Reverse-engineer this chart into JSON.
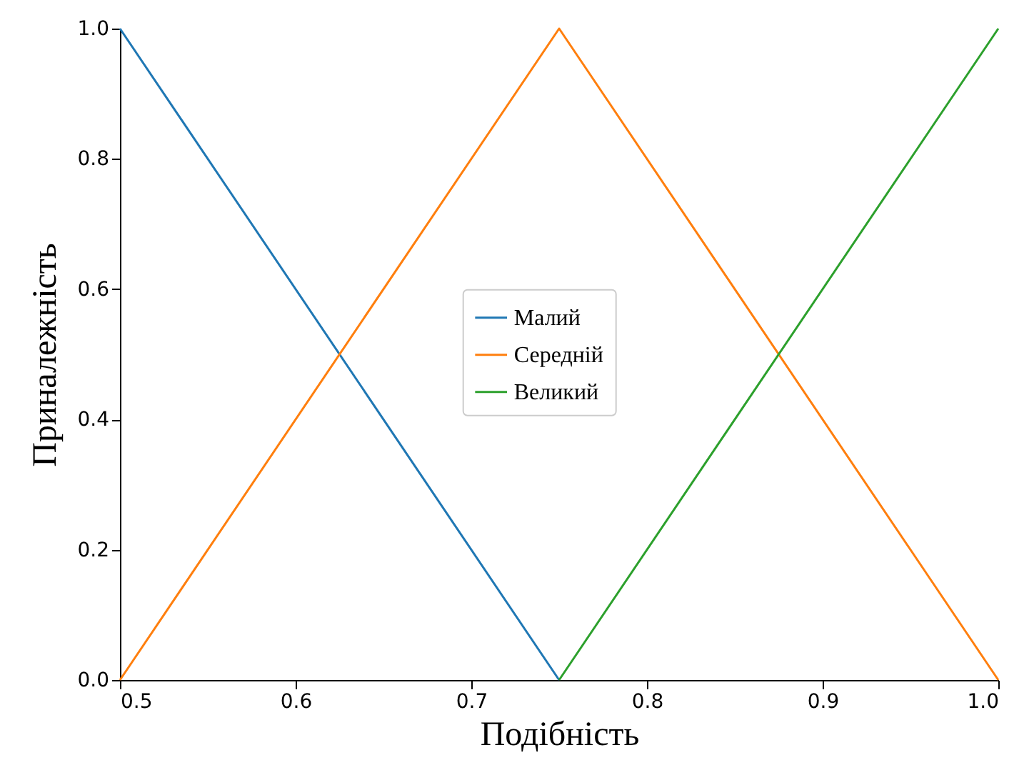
{
  "chart_data": {
    "type": "line",
    "xlabel": "Подібність",
    "ylabel": "Приналежність",
    "xlim": [
      0.5,
      1.0
    ],
    "ylim": [
      0,
      1.0
    ],
    "xticks": [
      0.5,
      0.6,
      0.7,
      0.8,
      0.9,
      {
        "value": 1,
        "label": "1.0"
      }
    ],
    "yticks": [
      {
        "value": 0,
        "label": "0.0"
      },
      0.2,
      0.4,
      0.6,
      0.8,
      {
        "value": 1,
        "label": "1.0"
      }
    ],
    "grid": false,
    "legend": "center",
    "marker": "none",
    "line_style": "solid",
    "series": [
      {
        "name": "Малий",
        "color": "#1f77b4",
        "x": [
          0.5,
          0.75
        ],
        "values": [
          1,
          0
        ]
      },
      {
        "name": "Середній",
        "color": "#ff7f0e",
        "x": [
          0.5,
          0.75,
          1.0
        ],
        "values": [
          0,
          1,
          0
        ]
      },
      {
        "name": "Великий",
        "color": "#2ca02c",
        "x": [
          0.75,
          1.0
        ],
        "values": [
          0,
          1
        ]
      }
    ]
  }
}
